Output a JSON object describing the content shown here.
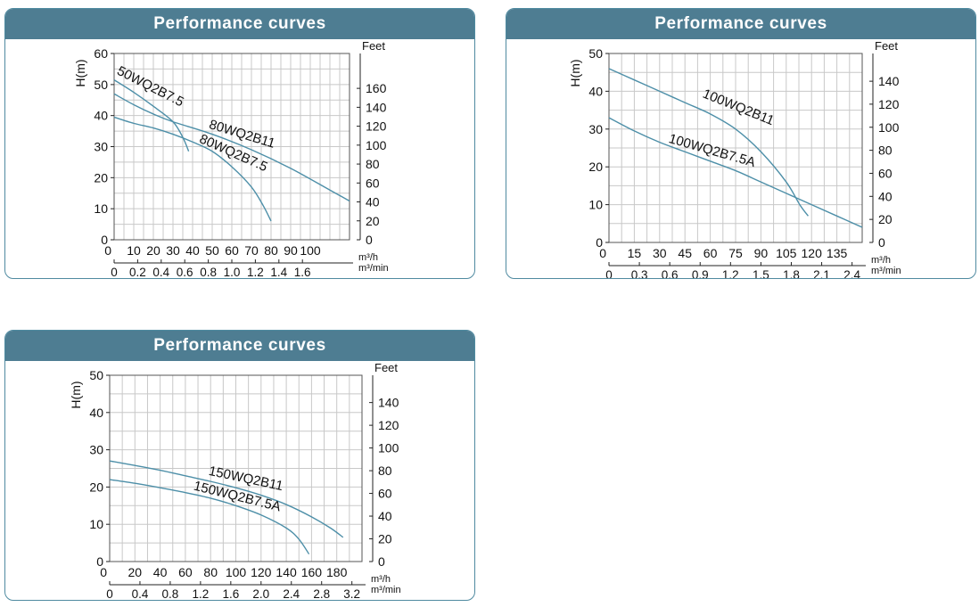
{
  "colors": {
    "header_bg": "#4e7d92",
    "header_text": "#ffffff",
    "panel_border": "#4f8aa0",
    "curve": "#4d8fa8",
    "grid": "#c8c8c8"
  },
  "panels": [
    {
      "title": "Performance curves"
    },
    {
      "title": "Performance curves"
    },
    {
      "title": "Performance curves"
    }
  ],
  "chart_data": [
    {
      "type": "line",
      "title": "Performance curves",
      "ylabel": "H(m)",
      "y2label": "Feet",
      "xlabel": "m³/h",
      "x2label": "m³/min",
      "xlim": [
        0,
        120
      ],
      "ylim": [
        0,
        60
      ],
      "x_ticks": [
        10,
        20,
        30,
        40,
        50,
        60,
        70,
        80,
        90,
        100
      ],
      "y_ticks": [
        0,
        10,
        20,
        30,
        40,
        50,
        60
      ],
      "feet_ticks": [
        0,
        20,
        40,
        60,
        80,
        100,
        120,
        140,
        160
      ],
      "min_ticks": [
        0,
        0.2,
        0.4,
        0.6,
        0.8,
        1.0,
        1.2,
        1.4,
        1.6
      ],
      "grid": true,
      "series": [
        {
          "name": "50WQ2B7.5",
          "label_pos": [
            1,
            53.5
          ],
          "label_angle": 27,
          "points": [
            [
              0,
              51.5
            ],
            [
              10,
              47.5
            ],
            [
              20,
              43
            ],
            [
              30,
              38
            ],
            [
              35,
              33
            ],
            [
              38,
              28.5
            ]
          ]
        },
        {
          "name": "80WQ2B11",
          "label_pos": [
            48,
            36
          ],
          "label_angle": 17,
          "points": [
            [
              0,
              47
            ],
            [
              10,
              43.5
            ],
            [
              20,
              40.5
            ],
            [
              30,
              38
            ],
            [
              50,
              34
            ],
            [
              70,
              29
            ],
            [
              90,
              23
            ],
            [
              110,
              16
            ],
            [
              120,
              12.5
            ]
          ]
        },
        {
          "name": "80WQ2B7.5",
          "label_pos": [
            43,
            31.5
          ],
          "label_angle": 24,
          "points": [
            [
              0,
              39.5
            ],
            [
              10,
              37.5
            ],
            [
              20,
              36
            ],
            [
              30,
              34
            ],
            [
              40,
              31.5
            ],
            [
              50,
              28.5
            ],
            [
              60,
              23.5
            ],
            [
              70,
              17
            ],
            [
              76,
              11
            ],
            [
              80,
              6
            ]
          ]
        }
      ]
    },
    {
      "type": "line",
      "title": "Performance curves",
      "ylabel": "H(m)",
      "y2label": "Feet",
      "xlabel": "m³/h",
      "x2label": "m³/min",
      "xlim": [
        0,
        150
      ],
      "ylim": [
        0,
        50
      ],
      "x_ticks": [
        15,
        30,
        45,
        60,
        75,
        90,
        105,
        120,
        135
      ],
      "y_ticks": [
        0,
        10,
        20,
        30,
        40,
        50
      ],
      "feet_ticks": [
        0,
        20,
        40,
        60,
        80,
        100,
        120,
        140
      ],
      "min_ticks": [
        0,
        0.3,
        0.6,
        0.9,
        1.2,
        1.5,
        1.8,
        2.1,
        2.4
      ],
      "grid": true,
      "series": [
        {
          "name": "100WQ2B11",
          "label_pos": [
            55,
            38.5
          ],
          "label_angle": 22,
          "points": [
            [
              0,
              46
            ],
            [
              15,
              43
            ],
            [
              30,
              40
            ],
            [
              45,
              37
            ],
            [
              60,
              34
            ],
            [
              75,
              30
            ],
            [
              90,
              24
            ],
            [
              105,
              16
            ],
            [
              113,
              10
            ],
            [
              118,
              7
            ]
          ]
        },
        {
          "name": "100WQ2B7.5A",
          "label_pos": [
            35,
            26.5
          ],
          "label_angle": 16,
          "points": [
            [
              0,
              33
            ],
            [
              15,
              29.5
            ],
            [
              30,
              26.5
            ],
            [
              45,
              24
            ],
            [
              60,
              21.5
            ],
            [
              75,
              19
            ],
            [
              90,
              16
            ],
            [
              105,
              13
            ],
            [
              120,
              10
            ],
            [
              135,
              7
            ],
            [
              150,
              4
            ]
          ]
        }
      ]
    },
    {
      "type": "line",
      "title": "Performance curves",
      "ylabel": "H(m)",
      "y2label": "Feet",
      "xlabel": "m³/h",
      "x2label": "m³/min",
      "xlim": [
        0,
        200
      ],
      "ylim": [
        0,
        50
      ],
      "x_ticks": [
        20,
        40,
        60,
        80,
        100,
        120,
        140,
        160,
        180
      ],
      "y_ticks": [
        0,
        10,
        20,
        30,
        40,
        50
      ],
      "feet_ticks": [
        0,
        20,
        40,
        60,
        80,
        100,
        120,
        140
      ],
      "min_ticks": [
        0,
        0.4,
        0.8,
        1.2,
        1.6,
        2.0,
        2.4,
        2.8,
        3.2
      ],
      "grid": true,
      "series": [
        {
          "name": "150WQ2B11",
          "label_pos": [
            78,
            23.3
          ],
          "label_angle": 12,
          "points": [
            [
              0,
              27
            ],
            [
              20,
              25.8
            ],
            [
              40,
              24.5
            ],
            [
              60,
              23
            ],
            [
              80,
              21.5
            ],
            [
              100,
              19.8
            ],
            [
              120,
              17.8
            ],
            [
              140,
              15.3
            ],
            [
              160,
              12
            ],
            [
              175,
              9
            ],
            [
              185,
              6.5
            ]
          ]
        },
        {
          "name": "150WQ2B7.5A",
          "label_pos": [
            66,
            19.3
          ],
          "label_angle": 14,
          "points": [
            [
              0,
              22
            ],
            [
              20,
              21
            ],
            [
              40,
              19.8
            ],
            [
              60,
              18.5
            ],
            [
              80,
              17
            ],
            [
              100,
              15
            ],
            [
              120,
              12.5
            ],
            [
              140,
              9
            ],
            [
              150,
              6
            ],
            [
              158,
              2
            ]
          ]
        }
      ]
    }
  ]
}
